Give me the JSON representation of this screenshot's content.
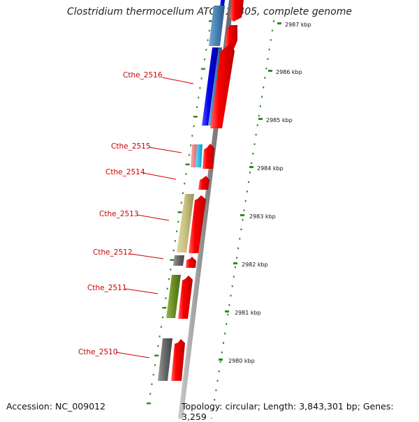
{
  "title": "Clostridium thermocellum ATCC 27405, complete genome",
  "footer": {
    "accession": "Accession: NC_009012",
    "topology": "Topology: circular; Length: 3,843,301 bp; Genes: 3,259"
  },
  "ticks": [
    "2987 kbp",
    "2986 kbp",
    "2985 kbp",
    "2984 kbp",
    "2983 kbp",
    "2982 kbp",
    "2981 kbp",
    "2980 kbp"
  ],
  "genes": [
    {
      "label": "Cthe_2516",
      "color": "#0000ee"
    },
    {
      "label": "Cthe_2515",
      "color": "#ff8888"
    },
    {
      "label": "Cthe_2514",
      "color": "#ff0000"
    },
    {
      "label": "Cthe_2513",
      "color": "#c8c080"
    },
    {
      "label": "Cthe_2512",
      "color": "#666666"
    },
    {
      "label": "Cthe_2511",
      "color": "#6b8e23"
    },
    {
      "label": "Cthe_2510",
      "color": "#666666"
    }
  ],
  "colors": {
    "cds": "#ff0000",
    "backbone": "#888888",
    "tick": "#2e8b22",
    "label": "#cc0000",
    "cog_blue": "#0000ee",
    "cog_steel": "#4682b4",
    "cog_cyan": "#22bbee",
    "cog_pink": "#ff8888",
    "cog_khaki": "#c8c080",
    "cog_olive": "#6b8e23",
    "cog_gray": "#666666"
  }
}
